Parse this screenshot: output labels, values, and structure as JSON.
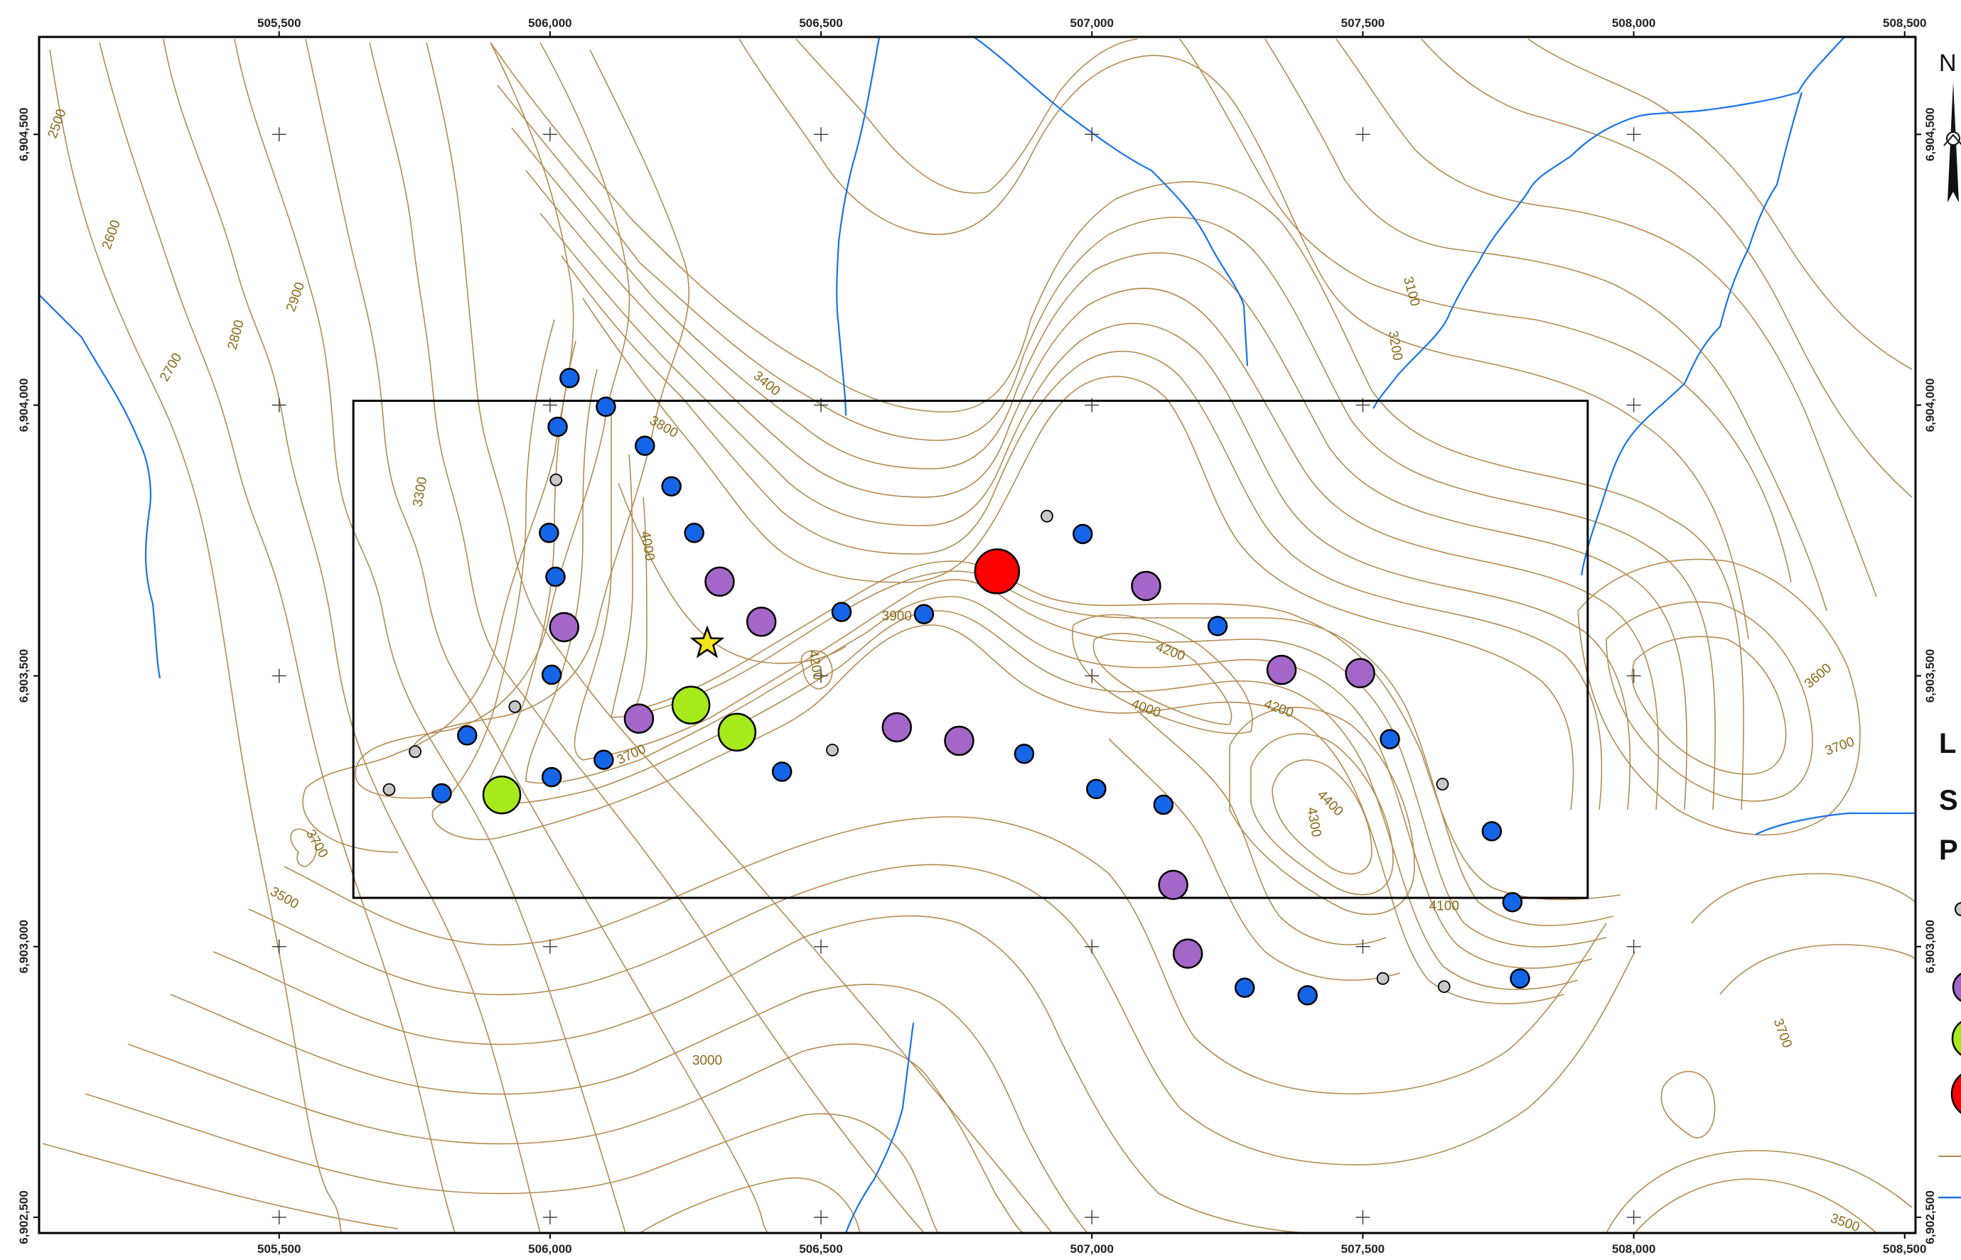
{
  "map": {
    "frame": {
      "x_min": 505057,
      "x_max": 508520,
      "y_min": 6902471,
      "y_max": 6904680
    },
    "colors": {
      "contour": "#b28b52",
      "river": "#1a73e8",
      "frame": "#000000",
      "point_blue": "#1565e8",
      "point_purple": "#a466c8",
      "point_green": "#a6ea1c",
      "point_red": "#ff0000",
      "point_gray": "#c8c8c8",
      "star": "#f3e61a"
    },
    "x_ticks": [
      {
        "value": 505500,
        "label": "505,500"
      },
      {
        "value": 506000,
        "label": "506,000"
      },
      {
        "value": 506500,
        "label": "506,500"
      },
      {
        "value": 507000,
        "label": "507,000"
      },
      {
        "value": 507500,
        "label": "507,500"
      },
      {
        "value": 508000,
        "label": "508,000"
      },
      {
        "value": 508500,
        "label": "508,500"
      }
    ],
    "y_ticks": [
      {
        "value": 6904500,
        "label": "6,904,500"
      },
      {
        "value": 6904000,
        "label": "6,904,000"
      },
      {
        "value": 6903500,
        "label": "6,903,500"
      },
      {
        "value": 6903000,
        "label": "6,903,000"
      },
      {
        "value": 6902500,
        "label": "6,902,500"
      }
    ],
    "contour_labels": [
      {
        "text": "2500",
        "x": 505090,
        "y": 6904520,
        "rot": -70
      },
      {
        "text": "2600",
        "x": 505190,
        "y": 6904315,
        "rot": -70
      },
      {
        "text": "2700",
        "x": 505300,
        "y": 6904070,
        "rot": -60
      },
      {
        "text": "2800",
        "x": 505420,
        "y": 6904130,
        "rot": -75
      },
      {
        "text": "2900",
        "x": 505530,
        "y": 6904200,
        "rot": -70
      },
      {
        "text": "3300",
        "x": 505760,
        "y": 6903840,
        "rot": -80
      },
      {
        "text": "3400",
        "x": 506400,
        "y": 6904040,
        "rot": 40
      },
      {
        "text": "3800",
        "x": 506210,
        "y": 6903960,
        "rot": 30
      },
      {
        "text": "4000",
        "x": 506180,
        "y": 6903740,
        "rot": 80
      },
      {
        "text": "3900",
        "x": 506640,
        "y": 6903610,
        "rot": 0
      },
      {
        "text": "4200",
        "x": 506490,
        "y": 6903520,
        "rot": 80
      },
      {
        "text": "3700",
        "x": 506150,
        "y": 6903355,
        "rot": -25
      },
      {
        "text": "3700",
        "x": 505570,
        "y": 6903190,
        "rot": 60
      },
      {
        "text": "3500",
        "x": 505510,
        "y": 6903090,
        "rot": 30
      },
      {
        "text": "3000",
        "x": 506290,
        "y": 6902790,
        "rot": 0
      },
      {
        "text": "4200",
        "x": 507145,
        "y": 6903545,
        "rot": 20
      },
      {
        "text": "4000",
        "x": 507100,
        "y": 6903440,
        "rot": 20
      },
      {
        "text": "4200",
        "x": 507345,
        "y": 6903440,
        "rot": 20
      },
      {
        "text": "4400",
        "x": 507440,
        "y": 6903265,
        "rot": 45
      },
      {
        "text": "4300",
        "x": 507410,
        "y": 6903230,
        "rot": 80
      },
      {
        "text": "4100",
        "x": 507650,
        "y": 6903075,
        "rot": 0
      },
      {
        "text": "3100",
        "x": 507590,
        "y": 6904210,
        "rot": 75
      },
      {
        "text": "3200",
        "x": 507560,
        "y": 6904110,
        "rot": 80
      },
      {
        "text": "3600",
        "x": 508340,
        "y": 6903500,
        "rot": -40
      },
      {
        "text": "3700",
        "x": 508380,
        "y": 6903370,
        "rot": -20
      },
      {
        "text": "3700",
        "x": 508275,
        "y": 6902840,
        "rot": 70
      },
      {
        "text": "3500",
        "x": 508390,
        "y": 6902490,
        "rot": 20
      }
    ],
    "points": [
      {
        "x": 506036,
        "y": 6904050,
        "type": "blue"
      },
      {
        "x": 506103,
        "y": 6903997,
        "type": "blue"
      },
      {
        "x": 506014,
        "y": 6903960,
        "type": "blue"
      },
      {
        "x": 506175,
        "y": 6903925,
        "type": "blue"
      },
      {
        "x": 506011,
        "y": 6903862,
        "type": "gray"
      },
      {
        "x": 506224,
        "y": 6903850,
        "type": "blue"
      },
      {
        "x": 505998,
        "y": 6903764,
        "type": "blue"
      },
      {
        "x": 506266,
        "y": 6903764,
        "type": "blue"
      },
      {
        "x": 506010,
        "y": 6903683,
        "type": "blue"
      },
      {
        "x": 506313,
        "y": 6903674,
        "type": "purple"
      },
      {
        "x": 506390,
        "y": 6903600,
        "type": "purple"
      },
      {
        "x": 506538,
        "y": 6903618,
        "type": "blue"
      },
      {
        "x": 506690,
        "y": 6903614,
        "type": "blue"
      },
      {
        "x": 506825,
        "y": 6903693,
        "type": "red"
      },
      {
        "x": 506917,
        "y": 6903795,
        "type": "gray"
      },
      {
        "x": 506983,
        "y": 6903762,
        "type": "blue"
      },
      {
        "x": 507100,
        "y": 6903666,
        "type": "purple"
      },
      {
        "x": 507232,
        "y": 6903592,
        "type": "blue"
      },
      {
        "x": 507350,
        "y": 6903511,
        "type": "purple"
      },
      {
        "x": 507495,
        "y": 6903505,
        "type": "purple"
      },
      {
        "x": 507550,
        "y": 6903383,
        "type": "blue"
      },
      {
        "x": 507647,
        "y": 6903300,
        "type": "gray"
      },
      {
        "x": 507738,
        "y": 6903213,
        "type": "blue"
      },
      {
        "x": 507776,
        "y": 6903082,
        "type": "blue"
      },
      {
        "x": 507790,
        "y": 6902941,
        "type": "blue"
      },
      {
        "x": 507650,
        "y": 6902926,
        "type": "gray"
      },
      {
        "x": 507537,
        "y": 6902941,
        "type": "gray"
      },
      {
        "x": 507398,
        "y": 6902910,
        "type": "blue"
      },
      {
        "x": 507282,
        "y": 6902924,
        "type": "blue"
      },
      {
        "x": 507177,
        "y": 6902987,
        "type": "purple"
      },
      {
        "x": 507150,
        "y": 6903114,
        "type": "purple"
      },
      {
        "x": 507132,
        "y": 6903262,
        "type": "blue"
      },
      {
        "x": 507008,
        "y": 6903291,
        "type": "blue"
      },
      {
        "x": 506875,
        "y": 6903356,
        "type": "blue"
      },
      {
        "x": 506755,
        "y": 6903380,
        "type": "purple"
      },
      {
        "x": 506640,
        "y": 6903405,
        "type": "purple"
      },
      {
        "x": 506521,
        "y": 6903363,
        "type": "gray"
      },
      {
        "x": 506428,
        "y": 6903323,
        "type": "blue"
      },
      {
        "x": 506345,
        "y": 6903396,
        "type": "green"
      },
      {
        "x": 506260,
        "y": 6903446,
        "type": "green"
      },
      {
        "x": 506164,
        "y": 6903421,
        "type": "purple"
      },
      {
        "x": 506099,
        "y": 6903345,
        "type": "blue"
      },
      {
        "x": 506003,
        "y": 6903313,
        "type": "blue"
      },
      {
        "x": 505911,
        "y": 6903280,
        "type": "green"
      },
      {
        "x": 505800,
        "y": 6903283,
        "type": "blue"
      },
      {
        "x": 505703,
        "y": 6903290,
        "type": "gray"
      },
      {
        "x": 505751,
        "y": 6903360,
        "type": "gray"
      },
      {
        "x": 505847,
        "y": 6903390,
        "type": "blue"
      },
      {
        "x": 505935,
        "y": 6903443,
        "type": "gray"
      },
      {
        "x": 506003,
        "y": 6903502,
        "type": "blue"
      },
      {
        "x": 506026,
        "y": 6903590,
        "type": "purple"
      }
    ],
    "star": {
      "x": 506290,
      "y": 6903560
    },
    "study_area": {
      "x1": 505637,
      "y1": 6904008,
      "x2": 507915,
      "y2": 6903090
    },
    "legend_fragments": [
      {
        "text": "N",
        "x": 2740,
        "y": 100
      },
      {
        "text": "L",
        "x": 2740,
        "y": 1060
      },
      {
        "text": "S",
        "x": 2740,
        "y": 1140
      },
      {
        "text": "P",
        "x": 2740,
        "y": 1210
      }
    ]
  }
}
